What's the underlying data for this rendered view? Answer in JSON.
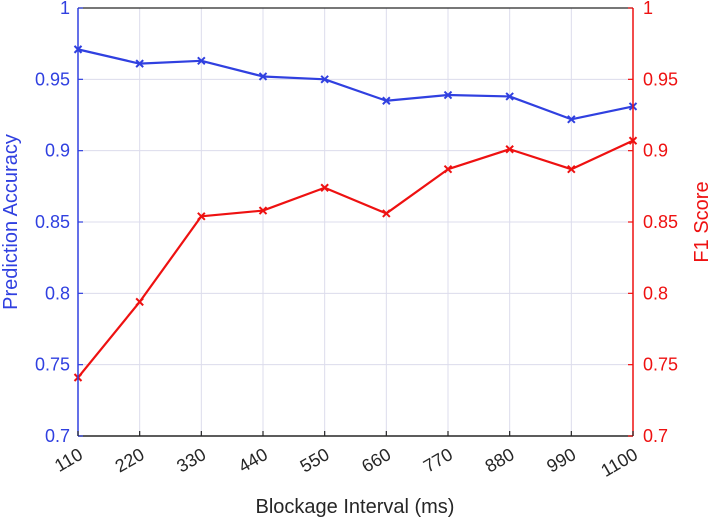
{
  "chart_data": {
    "type": "line",
    "xlabel": "Blockage Interval (ms)",
    "ylabel_left": "Prediction Accuracy",
    "ylabel_right": "F1 Score",
    "categories": [
      "110",
      "220",
      "330",
      "440",
      "550",
      "660",
      "770",
      "880",
      "990",
      "1100"
    ],
    "ylim_left": [
      0.7,
      1
    ],
    "ylim_right": [
      0.7,
      1
    ],
    "yticks_left": [
      "0.7",
      "0.75",
      "0.8",
      "0.85",
      "0.9",
      "0.95",
      "1"
    ],
    "yticks_right": [
      "0.7",
      "0.75",
      "0.8",
      "0.85",
      "0.9",
      "0.95",
      "1"
    ],
    "grid": true,
    "series": [
      {
        "name": "Prediction Accuracy",
        "axis": "left",
        "color": "#3040e0",
        "marker": "x",
        "values": [
          0.971,
          0.961,
          0.963,
          0.952,
          0.95,
          0.935,
          0.939,
          0.938,
          0.922,
          0.931
        ]
      },
      {
        "name": "F1 Score",
        "axis": "right",
        "color": "#ee1111",
        "marker": "x",
        "values": [
          0.741,
          0.794,
          0.854,
          0.858,
          0.874,
          0.856,
          0.887,
          0.901,
          0.887,
          0.907
        ]
      }
    ],
    "colors": {
      "left_axis": "#3040e0",
      "right_axis": "#ee1111",
      "bottom_axis": "#262626",
      "grid": "#dcdcec"
    }
  }
}
